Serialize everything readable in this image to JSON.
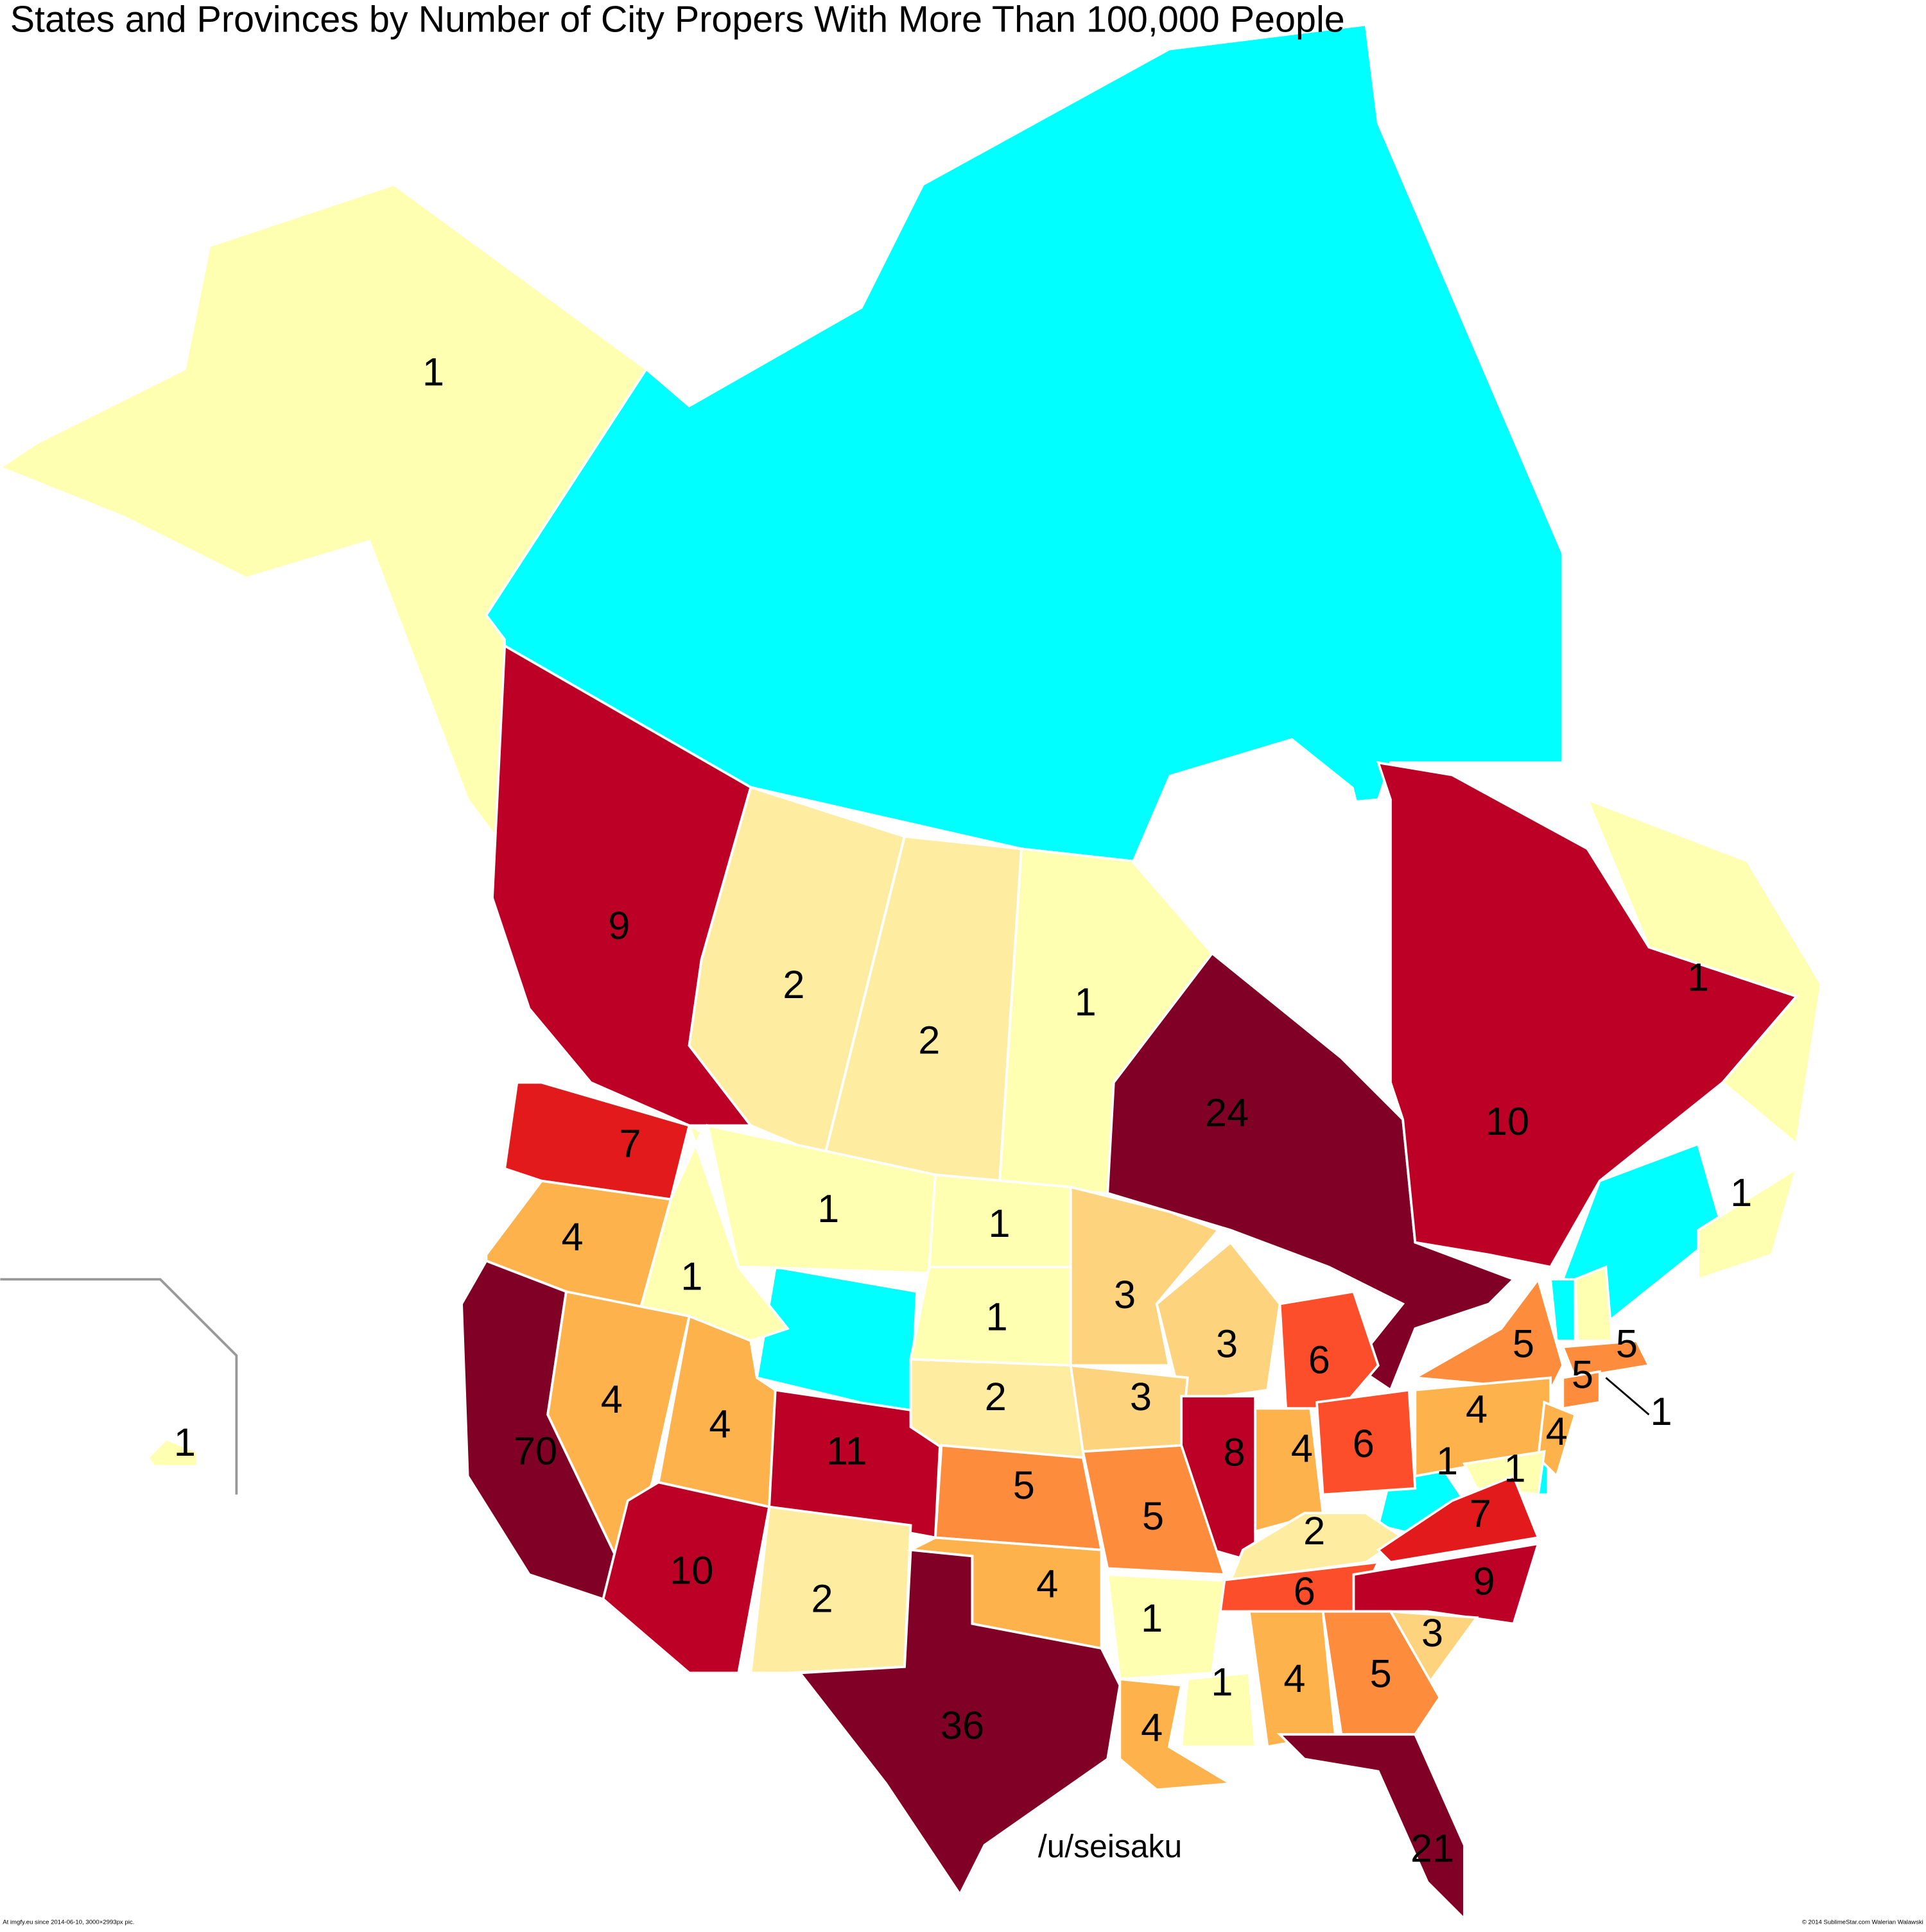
{
  "header": {
    "title": "States and Provinces by Number of City Propers With More Than 100,000 People"
  },
  "credit": "/u/seisaku",
  "footer": {
    "left": "At imgfy.eu since 2014-06-10, 3000×2993px pic.",
    "right": "© 2014 SublimeStar.com Walerian Walawski"
  },
  "regions": [
    {
      "label": 1,
      "color": "#ffffb2"
    },
    {
      "label": 9,
      "color": "#bd0026"
    },
    {
      "label": 2,
      "color": "#feeda0"
    },
    {
      "label": 2,
      "color": "#feeda0"
    },
    {
      "label": 1,
      "color": "#ffffb2"
    },
    {
      "label": 24,
      "color": "#800026"
    },
    {
      "label": 10,
      "color": "#bd0026"
    },
    {
      "label": 1,
      "color": "#ffffb2"
    },
    {
      "label": 1,
      "color": "#ffffb2"
    },
    {
      "label": 7,
      "color": "#e31a1c"
    },
    {
      "label": 4,
      "color": "#feb24c"
    },
    {
      "label": 1,
      "color": "#ffffb2"
    },
    {
      "label": 1,
      "color": "#ffffb2"
    },
    {
      "label": 1,
      "color": "#ffffb2"
    },
    {
      "label": 1,
      "color": "#ffffb2"
    },
    {
      "label": 3,
      "color": "#fed37e"
    },
    {
      "label": 3,
      "color": "#fed37e"
    },
    {
      "label": 6,
      "color": "#fc4e2a"
    },
    {
      "label": 5,
      "color": "#fd8d3c"
    },
    {
      "label": 5,
      "color": "#fd8d3c"
    },
    {
      "label": 5,
      "color": "#fd8d3c"
    },
    {
      "label": 1,
      "color": "#ffffb2"
    },
    {
      "label": 70,
      "color": "#800026"
    },
    {
      "label": 4,
      "color": "#feb24c"
    },
    {
      "label": 4,
      "color": "#feb24c"
    },
    {
      "label": 11,
      "color": "#bd0026"
    },
    {
      "label": 2,
      "color": "#feeda0"
    },
    {
      "label": 3,
      "color": "#fed37e"
    },
    {
      "label": 8,
      "color": "#bd0026"
    },
    {
      "label": 4,
      "color": "#feb24c"
    },
    {
      "label": 6,
      "color": "#fc4e2a"
    },
    {
      "label": 4,
      "color": "#feb24c"
    },
    {
      "label": 4,
      "color": "#feb24c"
    },
    {
      "label": 1,
      "color": "#ffffb2"
    },
    {
      "label": 1,
      "color": "#ffffb2"
    },
    {
      "label": 5,
      "color": "#fd8d3c"
    },
    {
      "label": 5,
      "color": "#fd8d3c"
    },
    {
      "label": 2,
      "color": "#feeda0"
    },
    {
      "label": 7,
      "color": "#e31a1c"
    },
    {
      "label": 6,
      "color": "#fc4e2a"
    },
    {
      "label": 9,
      "color": "#bd0026"
    },
    {
      "label": 10,
      "color": "#bd0026"
    },
    {
      "label": 2,
      "color": "#feeda0"
    },
    {
      "label": 4,
      "color": "#feb24c"
    },
    {
      "label": 1,
      "color": "#ffffb2"
    },
    {
      "label": 3,
      "color": "#fed37e"
    },
    {
      "label": 1,
      "color": "#ffffb2"
    },
    {
      "label": 4,
      "color": "#feb24c"
    },
    {
      "label": 5,
      "color": "#fd8d3c"
    },
    {
      "label": 4,
      "color": "#feb24c"
    },
    {
      "label": 36,
      "color": "#800026"
    },
    {
      "label": 21,
      "color": "#800026"
    },
    {
      "label": 1,
      "color": "#ffffb2"
    }
  ]
}
